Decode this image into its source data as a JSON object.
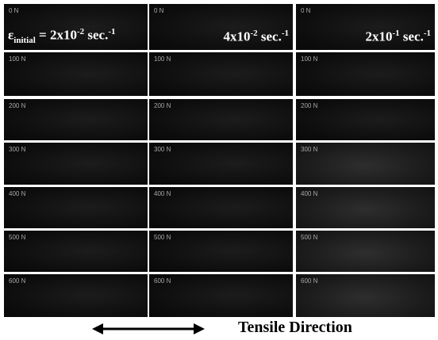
{
  "load_labels": [
    "0 N",
    "100 N",
    "200 N",
    "300 N",
    "400 N",
    "500 N",
    "600 N"
  ],
  "rate_labels": [
    {
      "symbol": "ε",
      "subscript": "initial",
      "lead": "= 2x10",
      "exponent": "-2",
      "unit": "sec.",
      "unit_exponent": "-1"
    },
    {
      "lead": "4x10",
      "exponent": "-2",
      "unit": "sec.",
      "unit_exponent": "-1"
    },
    {
      "lead": "2x10",
      "exponent": "-1",
      "unit": "sec.",
      "unit_exponent": "-1"
    }
  ],
  "caption": "Tensile Direction"
}
